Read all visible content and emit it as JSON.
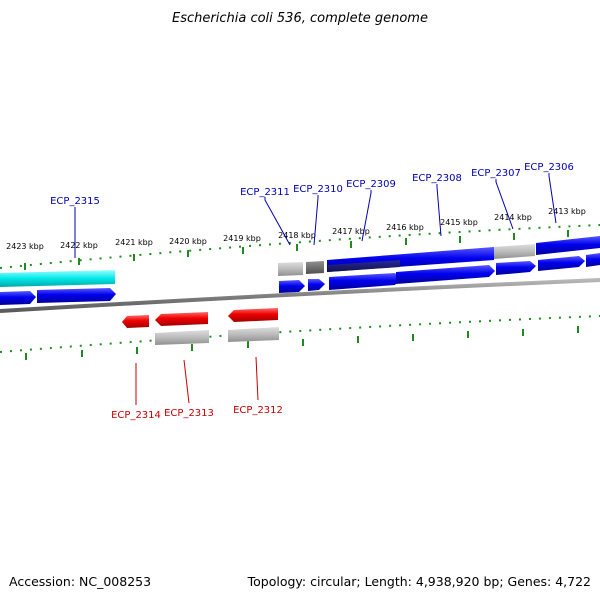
{
  "title": "Escherichia coli 536, complete genome",
  "footer": {
    "accession": "Accession: NC_008253",
    "topology": "Topology: circular; Length: 4,938,920 bp; Genes: 4,722"
  },
  "ticks": [
    "2423 kbp",
    "2422 kbp",
    "2421 kbp",
    "2420 kbp",
    "2419 kbp",
    "2418 kbp",
    "2417 kbp",
    "2416 kbp",
    "2415 kbp",
    "2414 kbp",
    "2413 kbp"
  ],
  "gene_labels_upper": [
    "ECP_2315",
    "ECP_2311",
    "ECP_2310",
    "ECP_2309",
    "ECP_2308",
    "ECP_2307",
    "ECP_2306"
  ],
  "gene_labels_lower": [
    "ECP_2314",
    "ECP_2313",
    "ECP_2312"
  ],
  "colors": {
    "forward_gene": "#0000ee",
    "reverse_gene": "#ee0000",
    "rna_gene": "#00e5e5",
    "pseudo_gene": "#b4b4b4",
    "backbone": "#8c8c8c",
    "tick_green": "#1e8c1e"
  }
}
